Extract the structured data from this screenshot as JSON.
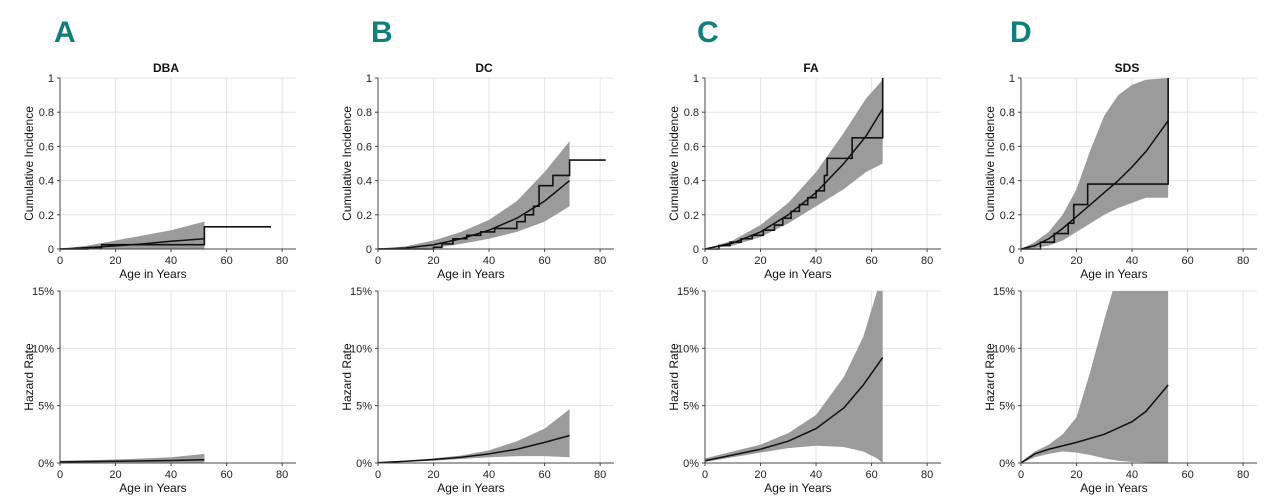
{
  "panels": [
    "A",
    "B",
    "C",
    "D"
  ],
  "chart_data": [
    {
      "type": "line",
      "panel": "A",
      "title": "DBA",
      "xlabel": "Age in Years",
      "ylabel": "Cumulative Incidence",
      "xlim": [
        0,
        85
      ],
      "ylim": [
        0,
        1
      ],
      "xticks": [
        0,
        20,
        40,
        60,
        80
      ],
      "yticks": [
        0,
        0.2,
        0.4,
        0.6,
        0.8,
        1
      ],
      "ytick_labels": [
        "0",
        "0.2",
        "0.4",
        "0.6",
        "0.8",
        "1"
      ],
      "curve": [
        [
          0,
          0
        ],
        [
          10,
          0.008
        ],
        [
          20,
          0.018
        ],
        [
          30,
          0.03
        ],
        [
          40,
          0.045
        ],
        [
          52,
          0.06
        ]
      ],
      "band_upper": [
        [
          0,
          0
        ],
        [
          10,
          0.02
        ],
        [
          20,
          0.05
        ],
        [
          30,
          0.08
        ],
        [
          40,
          0.11
        ],
        [
          52,
          0.16
        ]
      ],
      "band_lower": [
        [
          0,
          0
        ],
        [
          10,
          0
        ],
        [
          20,
          0
        ],
        [
          30,
          0
        ],
        [
          40,
          0
        ],
        [
          52,
          0
        ]
      ],
      "step": [
        [
          0,
          0
        ],
        [
          10,
          0
        ],
        [
          10,
          0.008
        ],
        [
          15,
          0.008
        ],
        [
          15,
          0.025
        ],
        [
          52,
          0.025
        ],
        [
          52,
          0.13
        ],
        [
          76,
          0.13
        ]
      ]
    },
    {
      "type": "line",
      "panel": "B",
      "title": "DC",
      "xlabel": "Age in Years",
      "ylabel": "Cumulative Incidence",
      "xlim": [
        0,
        85
      ],
      "ylim": [
        0,
        1
      ],
      "xticks": [
        0,
        20,
        40,
        60,
        80
      ],
      "yticks": [
        0,
        0.2,
        0.4,
        0.6,
        0.8,
        1
      ],
      "ytick_labels": [
        "0",
        "0.2",
        "0.4",
        "0.6",
        "0.8",
        "1"
      ],
      "curve": [
        [
          0,
          0
        ],
        [
          10,
          0.006
        ],
        [
          20,
          0.025
        ],
        [
          30,
          0.06
        ],
        [
          40,
          0.11
        ],
        [
          50,
          0.18
        ],
        [
          60,
          0.28
        ],
        [
          69,
          0.4
        ]
      ],
      "band_upper": [
        [
          0,
          0
        ],
        [
          10,
          0.015
        ],
        [
          20,
          0.05
        ],
        [
          30,
          0.1
        ],
        [
          40,
          0.17
        ],
        [
          50,
          0.28
        ],
        [
          60,
          0.45
        ],
        [
          69,
          0.63
        ]
      ],
      "band_lower": [
        [
          0,
          0
        ],
        [
          10,
          0
        ],
        [
          20,
          0.005
        ],
        [
          30,
          0.03
        ],
        [
          40,
          0.06
        ],
        [
          50,
          0.1
        ],
        [
          60,
          0.16
        ],
        [
          69,
          0.25
        ]
      ],
      "step": [
        [
          0,
          0
        ],
        [
          20,
          0
        ],
        [
          20,
          0.01
        ],
        [
          23,
          0.01
        ],
        [
          23,
          0.03
        ],
        [
          27,
          0.03
        ],
        [
          27,
          0.06
        ],
        [
          32,
          0.06
        ],
        [
          32,
          0.08
        ],
        [
          37,
          0.08
        ],
        [
          37,
          0.1
        ],
        [
          42,
          0.1
        ],
        [
          42,
          0.12
        ],
        [
          50,
          0.12
        ],
        [
          50,
          0.16
        ],
        [
          53,
          0.16
        ],
        [
          53,
          0.2
        ],
        [
          56,
          0.2
        ],
        [
          56,
          0.25
        ],
        [
          58,
          0.25
        ],
        [
          58,
          0.37
        ],
        [
          63,
          0.37
        ],
        [
          63,
          0.43
        ],
        [
          69,
          0.43
        ],
        [
          69,
          0.52
        ],
        [
          82,
          0.52
        ]
      ]
    },
    {
      "type": "line",
      "panel": "C",
      "title": "FA",
      "xlabel": "Age in Years",
      "ylabel": "Cumulative Incidence",
      "xlim": [
        0,
        85
      ],
      "ylim": [
        0,
        1
      ],
      "xticks": [
        0,
        20,
        40,
        60,
        80
      ],
      "yticks": [
        0,
        0.2,
        0.4,
        0.6,
        0.8,
        1
      ],
      "ytick_labels": [
        "0",
        "0.2",
        "0.4",
        "0.6",
        "0.8",
        "1"
      ],
      "curve": [
        [
          0,
          0
        ],
        [
          10,
          0.035
        ],
        [
          20,
          0.1
        ],
        [
          30,
          0.2
        ],
        [
          40,
          0.33
        ],
        [
          50,
          0.5
        ],
        [
          58,
          0.66
        ],
        [
          64,
          0.82
        ]
      ],
      "band_upper": [
        [
          0,
          0
        ],
        [
          10,
          0.05
        ],
        [
          20,
          0.14
        ],
        [
          30,
          0.27
        ],
        [
          40,
          0.45
        ],
        [
          50,
          0.68
        ],
        [
          58,
          0.88
        ],
        [
          64,
          0.99
        ]
      ],
      "band_lower": [
        [
          0,
          0
        ],
        [
          10,
          0.02
        ],
        [
          20,
          0.07
        ],
        [
          30,
          0.15
        ],
        [
          40,
          0.25
        ],
        [
          50,
          0.35
        ],
        [
          58,
          0.45
        ],
        [
          64,
          0.5
        ]
      ],
      "step": [
        [
          0,
          0
        ],
        [
          5,
          0
        ],
        [
          5,
          0.02
        ],
        [
          9,
          0.02
        ],
        [
          9,
          0.04
        ],
        [
          13,
          0.04
        ],
        [
          13,
          0.06
        ],
        [
          17,
          0.06
        ],
        [
          17,
          0.08
        ],
        [
          21,
          0.08
        ],
        [
          21,
          0.11
        ],
        [
          25,
          0.11
        ],
        [
          25,
          0.14
        ],
        [
          28,
          0.14
        ],
        [
          28,
          0.18
        ],
        [
          31,
          0.18
        ],
        [
          31,
          0.22
        ],
        [
          34,
          0.22
        ],
        [
          34,
          0.26
        ],
        [
          37,
          0.26
        ],
        [
          37,
          0.3
        ],
        [
          40,
          0.3
        ],
        [
          40,
          0.34
        ],
        [
          43,
          0.34
        ],
        [
          43,
          0.43
        ],
        [
          44,
          0.43
        ],
        [
          44,
          0.53
        ],
        [
          53,
          0.53
        ],
        [
          53,
          0.65
        ],
        [
          64,
          0.65
        ],
        [
          64,
          1
        ]
      ]
    },
    {
      "type": "line",
      "panel": "D",
      "title": "SDS",
      "xlabel": "Age in Years",
      "ylabel": "Cumulative Incidence",
      "xlim": [
        0,
        85
      ],
      "ylim": [
        0,
        1
      ],
      "xticks": [
        0,
        20,
        40,
        60,
        80
      ],
      "yticks": [
        0,
        0.2,
        0.4,
        0.6,
        0.8,
        1
      ],
      "ytick_labels": [
        "0",
        "0.2",
        "0.4",
        "0.6",
        "0.8",
        "1"
      ],
      "curve": [
        [
          0,
          0
        ],
        [
          5,
          0.02
        ],
        [
          10,
          0.06
        ],
        [
          15,
          0.12
        ],
        [
          20,
          0.19
        ],
        [
          25,
          0.26
        ],
        [
          30,
          0.33
        ],
        [
          35,
          0.4
        ],
        [
          40,
          0.48
        ],
        [
          45,
          0.57
        ],
        [
          53,
          0.75
        ]
      ],
      "band_upper": [
        [
          0,
          0
        ],
        [
          5,
          0.04
        ],
        [
          10,
          0.1
        ],
        [
          15,
          0.2
        ],
        [
          20,
          0.35
        ],
        [
          25,
          0.58
        ],
        [
          30,
          0.78
        ],
        [
          35,
          0.9
        ],
        [
          40,
          0.96
        ],
        [
          45,
          0.99
        ],
        [
          53,
          1.0
        ]
      ],
      "band_lower": [
        [
          0,
          0
        ],
        [
          5,
          0.005
        ],
        [
          10,
          0.02
        ],
        [
          15,
          0.05
        ],
        [
          20,
          0.1
        ],
        [
          25,
          0.15
        ],
        [
          30,
          0.2
        ],
        [
          35,
          0.24
        ],
        [
          40,
          0.27
        ],
        [
          45,
          0.3
        ],
        [
          53,
          0.3
        ]
      ],
      "step": [
        [
          0,
          0
        ],
        [
          7,
          0
        ],
        [
          7,
          0.04
        ],
        [
          12,
          0.04
        ],
        [
          12,
          0.09
        ],
        [
          17,
          0.09
        ],
        [
          17,
          0.15
        ],
        [
          19,
          0.15
        ],
        [
          19,
          0.26
        ],
        [
          24,
          0.26
        ],
        [
          24,
          0.38
        ],
        [
          53,
          0.38
        ],
        [
          53,
          1
        ]
      ]
    },
    {
      "type": "line",
      "panel": "A",
      "xlabel": "Age in Years",
      "ylabel": "Hazard Rate",
      "xlim": [
        0,
        85
      ],
      "ylim": [
        0,
        0.15
      ],
      "xticks": [
        0,
        20,
        40,
        60,
        80
      ],
      "yticks": [
        0,
        0.05,
        0.1,
        0.15
      ],
      "ytick_labels": [
        "0%",
        "5%",
        "10%",
        "15%"
      ],
      "curve": [
        [
          0,
          0.001
        ],
        [
          20,
          0.0015
        ],
        [
          40,
          0.0022
        ],
        [
          52,
          0.0028
        ]
      ],
      "band_upper": [
        [
          0,
          0.002
        ],
        [
          20,
          0.003
        ],
        [
          40,
          0.005
        ],
        [
          48,
          0.007
        ],
        [
          52,
          0.008
        ]
      ],
      "band_lower": [
        [
          0,
          0.0005
        ],
        [
          20,
          0.0005
        ],
        [
          40,
          0.0005
        ],
        [
          52,
          0.0005
        ]
      ]
    },
    {
      "type": "line",
      "panel": "B",
      "xlabel": "Age in Years",
      "ylabel": "Hazard Rate",
      "xlim": [
        0,
        85
      ],
      "ylim": [
        0,
        0.15
      ],
      "xticks": [
        0,
        20,
        40,
        60,
        80
      ],
      "yticks": [
        0,
        0.05,
        0.1,
        0.15
      ],
      "ytick_labels": [
        "0%",
        "5%",
        "10%",
        "15%"
      ],
      "curve": [
        [
          0,
          0.0003
        ],
        [
          10,
          0.0015
        ],
        [
          20,
          0.003
        ],
        [
          30,
          0.005
        ],
        [
          40,
          0.008
        ],
        [
          50,
          0.012
        ],
        [
          60,
          0.018
        ],
        [
          69,
          0.024
        ]
      ],
      "band_upper": [
        [
          0,
          0.0005
        ],
        [
          10,
          0.002
        ],
        [
          20,
          0.004
        ],
        [
          30,
          0.0065
        ],
        [
          40,
          0.011
        ],
        [
          50,
          0.019
        ],
        [
          60,
          0.03
        ],
        [
          69,
          0.047
        ]
      ],
      "band_lower": [
        [
          0,
          0.0002
        ],
        [
          10,
          0.001
        ],
        [
          20,
          0.002
        ],
        [
          30,
          0.0035
        ],
        [
          40,
          0.005
        ],
        [
          50,
          0.006
        ],
        [
          60,
          0.006
        ],
        [
          69,
          0.005
        ]
      ]
    },
    {
      "type": "line",
      "panel": "C",
      "xlabel": "Age in Years",
      "ylabel": "Hazard Rate",
      "xlim": [
        0,
        85
      ],
      "ylim": [
        0,
        0.15
      ],
      "xticks": [
        0,
        20,
        40,
        60,
        80
      ],
      "yticks": [
        0,
        0.05,
        0.1,
        0.15
      ],
      "ytick_labels": [
        "0%",
        "5%",
        "10%",
        "15%"
      ],
      "curve": [
        [
          0,
          0.002
        ],
        [
          10,
          0.007
        ],
        [
          20,
          0.012
        ],
        [
          30,
          0.019
        ],
        [
          40,
          0.03
        ],
        [
          50,
          0.048
        ],
        [
          57,
          0.068
        ],
        [
          64,
          0.092
        ]
      ],
      "band_upper": [
        [
          0,
          0.004
        ],
        [
          10,
          0.01
        ],
        [
          20,
          0.016
        ],
        [
          30,
          0.026
        ],
        [
          40,
          0.042
        ],
        [
          50,
          0.075
        ],
        [
          57,
          0.11
        ],
        [
          62,
          0.15
        ],
        [
          64,
          0.15
        ]
      ],
      "band_lower": [
        [
          0,
          0.001
        ],
        [
          10,
          0.005
        ],
        [
          20,
          0.009
        ],
        [
          30,
          0.013
        ],
        [
          40,
          0.015
        ],
        [
          50,
          0.014
        ],
        [
          57,
          0.01
        ],
        [
          62,
          0.004
        ],
        [
          64,
          0.0
        ]
      ]
    },
    {
      "type": "line",
      "panel": "D",
      "xlabel": "Age in Years",
      "ylabel": "Hazard Rate",
      "xlim": [
        0,
        85
      ],
      "ylim": [
        0,
        0.15
      ],
      "xticks": [
        0,
        20,
        40,
        60,
        80
      ],
      "yticks": [
        0,
        0.05,
        0.1,
        0.15
      ],
      "ytick_labels": [
        "0%",
        "5%",
        "10%",
        "15%"
      ],
      "curve": [
        [
          0,
          0
        ],
        [
          5,
          0.008
        ],
        [
          10,
          0.012
        ],
        [
          20,
          0.018
        ],
        [
          30,
          0.025
        ],
        [
          40,
          0.036
        ],
        [
          45,
          0.045
        ],
        [
          53,
          0.068
        ]
      ],
      "band_upper": [
        [
          0,
          0.001
        ],
        [
          5,
          0.01
        ],
        [
          10,
          0.016
        ],
        [
          15,
          0.025
        ],
        [
          20,
          0.04
        ],
        [
          25,
          0.08
        ],
        [
          30,
          0.125
        ],
        [
          33,
          0.15
        ],
        [
          53,
          0.15
        ]
      ],
      "band_lower": [
        [
          0,
          0
        ],
        [
          5,
          0.005
        ],
        [
          10,
          0.008
        ],
        [
          15,
          0.01
        ],
        [
          20,
          0.009
        ],
        [
          25,
          0.007
        ],
        [
          30,
          0.004
        ],
        [
          35,
          0.002
        ],
        [
          40,
          0.001
        ],
        [
          53,
          0
        ]
      ]
    }
  ]
}
